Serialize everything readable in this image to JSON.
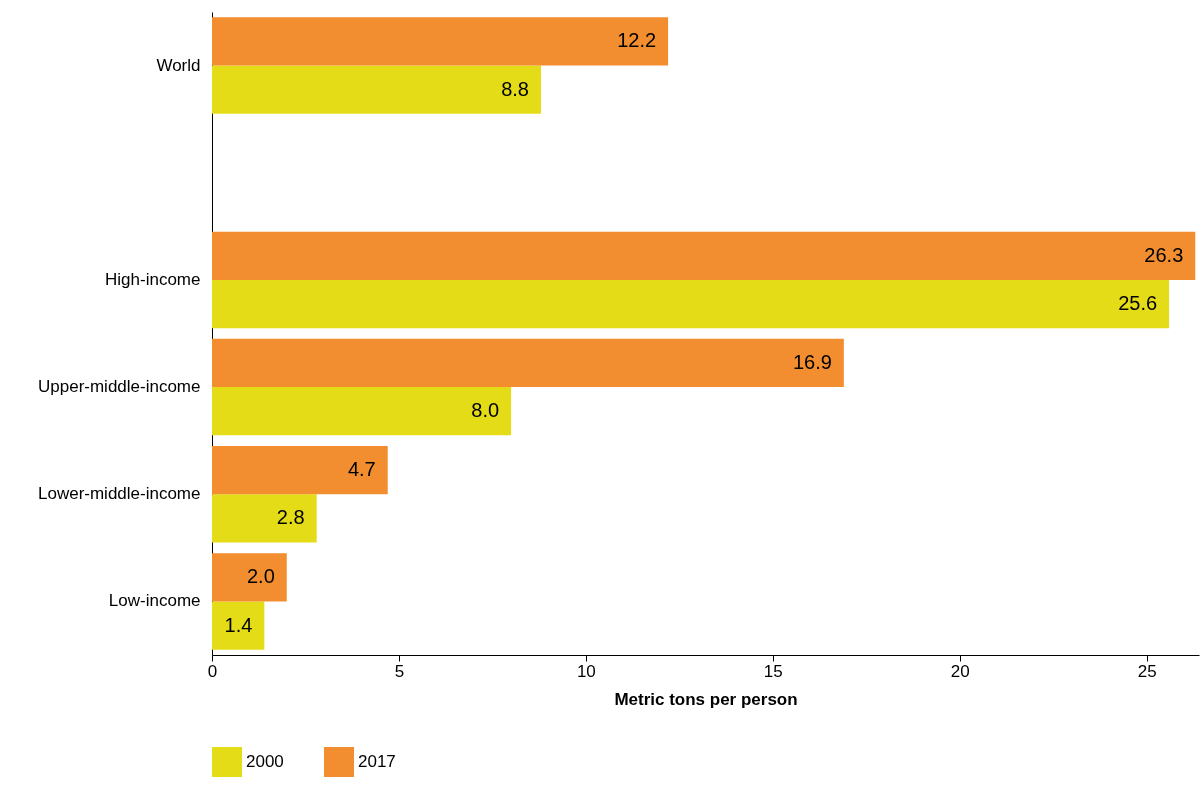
{
  "chart_data": {
    "type": "bar",
    "orientation": "horizontal",
    "xlabel": "Metric tons per person",
    "categories": [
      "World",
      null,
      "High-income",
      "Upper-middle-income",
      "Lower-middle-income",
      "Low-income"
    ],
    "series": [
      {
        "name": "2000",
        "color": "#e3dc17",
        "values": [
          8.8,
          null,
          25.6,
          8.0,
          2.8,
          1.4
        ],
        "value_labels": [
          "8.8",
          null,
          "25.6",
          "8.0",
          "2.8",
          "1.4"
        ]
      },
      {
        "name": "2017",
        "color": "#f28e2f",
        "values": [
          12.2,
          null,
          26.3,
          16.9,
          4.7,
          2.0
        ],
        "value_labels": [
          "12.2",
          null,
          "26.3",
          "16.9",
          "4.7",
          "2.0"
        ]
      }
    ],
    "xlim": [
      0,
      26.4
    ],
    "xticks": [
      0,
      5,
      10,
      15,
      20,
      25
    ],
    "grid": false,
    "legend": "bottom"
  }
}
